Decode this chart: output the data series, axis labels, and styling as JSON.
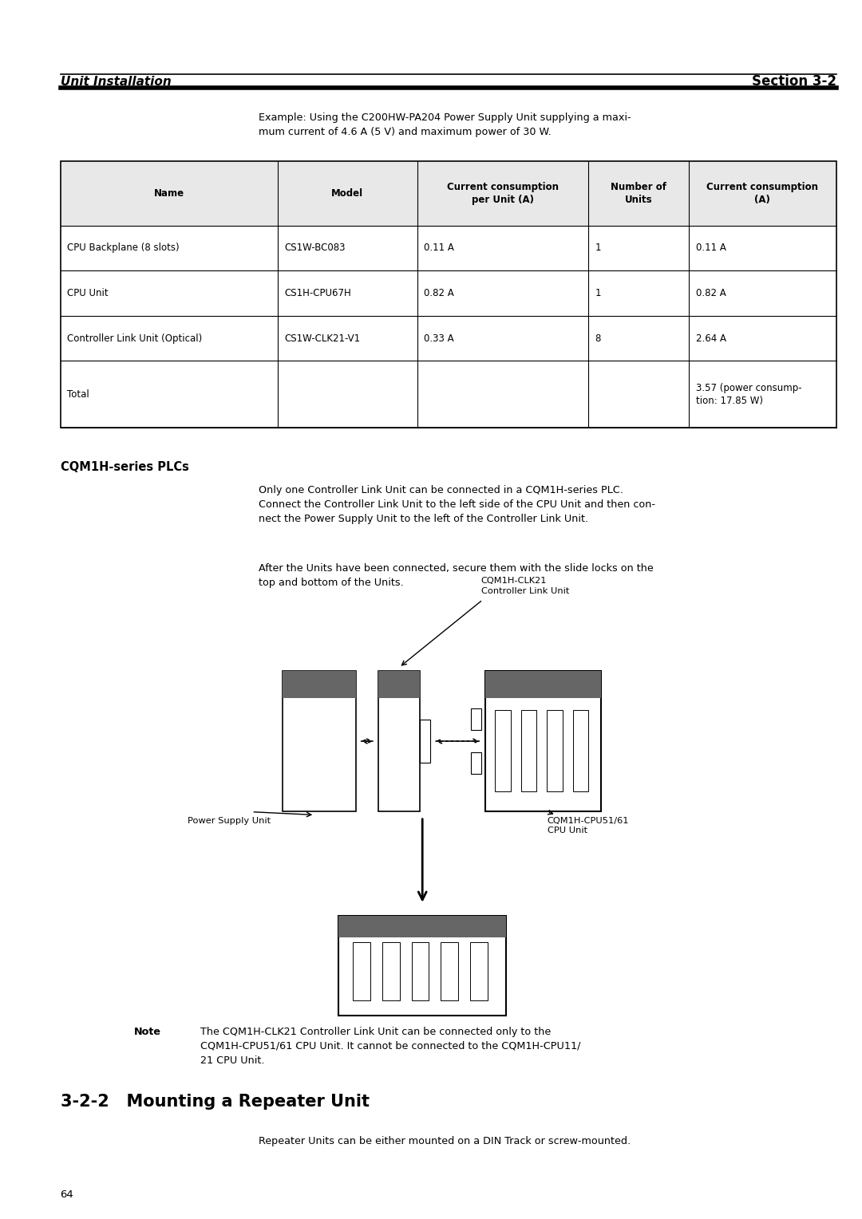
{
  "page_width": 10.8,
  "page_height": 15.28,
  "bg_color": "#ffffff",
  "header_left": "Unit Installation",
  "header_right": "Section 3-2",
  "example_text": "Example: Using the C200HW-PA204 Power Supply Unit supplying a maxi-\nmum current of 4.6 A (5 V) and maximum power of 30 W.",
  "table_headers": [
    "Name",
    "Model",
    "Current consumption\nper Unit (A)",
    "Number of\nUnits",
    "Current consumption\n(A)"
  ],
  "table_rows": [
    [
      "CPU Backplane (8 slots)",
      "CS1W-BC083",
      "0.11 A",
      "1",
      "0.11 A"
    ],
    [
      "CPU Unit",
      "CS1H-CPU67H",
      "0.82 A",
      "1",
      "0.82 A"
    ],
    [
      "Controller Link Unit (Optical)",
      "CS1W-CLK21-V1",
      "0.33 A",
      "8",
      "2.64 A"
    ],
    [
      "Total",
      "",
      "",
      "",
      "3.57 (power consump-\ntion: 17.85 W)"
    ]
  ],
  "section_heading": "CQM1H-series PLCs",
  "para1": "Only one Controller Link Unit can be connected in a CQM1H-series PLC.\nConnect the Controller Link Unit to the left side of the CPU Unit and then con-\nnect the Power Supply Unit to the left of the Controller Link Unit.",
  "para2": "After the Units have been connected, secure them with the slide locks on the\ntop and bottom of the Units.",
  "diagram_label1": "CQM1H-CLK21\nController Link Unit",
  "diagram_label2": "Power Supply Unit",
  "diagram_label3": "CQM1H-CPU51/61\nCPU Unit",
  "note_bold": "Note",
  "note_text": "The CQM1H-CLK21 Controller Link Unit can be connected only to the\nCQM1H-CPU51/61 CPU Unit. It cannot be connected to the CQM1H-CPU11/\n21 CPU Unit.",
  "section_number": "3-2-2",
  "section_title": "Mounting a Repeater Unit",
  "repeater_text": "Repeater Units can be either mounted on a DIN Track or screw-mounted.",
  "page_number": "64"
}
